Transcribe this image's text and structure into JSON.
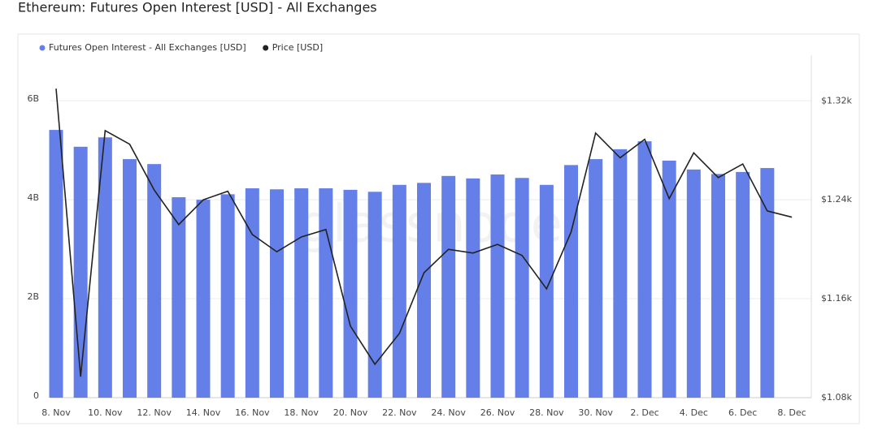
{
  "chart_data": {
    "type": "combo",
    "title": "Ethereum: Futures Open Interest [USD] - All Exchanges",
    "watermark": "glassnode",
    "categories": [
      "8. Nov",
      null,
      "10. Nov",
      null,
      "12. Nov",
      null,
      "14. Nov",
      null,
      "16. Nov",
      null,
      "18. Nov",
      null,
      "20. Nov",
      null,
      "22. Nov",
      null,
      "24. Nov",
      null,
      "26. Nov",
      null,
      "28. Nov",
      null,
      "30. Nov",
      null,
      "2. Dec",
      null,
      "4. Dec",
      null,
      "6. Dec",
      null,
      "8. Dec"
    ],
    "series": [
      {
        "name": "Futures Open Interest - All Exchanges [USD]",
        "type": "bar",
        "color": "#6480e8",
        "values": [
          5410000000.0,
          5070000000.0,
          5260000000.0,
          4820000000.0,
          4720000000.0,
          4050000000.0,
          4000000000.0,
          4110000000.0,
          4230000000.0,
          4210000000.0,
          4230000000.0,
          4230000000.0,
          4200000000.0,
          4160000000.0,
          4300000000.0,
          4340000000.0,
          4480000000.0,
          4430000000.0,
          4510000000.0,
          4440000000.0,
          4300000000.0,
          4700000000.0,
          4820000000.0,
          5020000000.0,
          5180000000.0,
          4790000000.0,
          4610000000.0,
          4520000000.0,
          4560000000.0,
          4640000000.0,
          null
        ]
      },
      {
        "name": "Price [USD]",
        "type": "line",
        "color": "#222222",
        "axis": "y2",
        "values": [
          1330,
          1097,
          1296,
          1285,
          1248,
          1220,
          1240,
          1247,
          1212,
          1198,
          1210,
          1216,
          1138,
          1107,
          1132,
          1181,
          1200,
          1197,
          1204,
          1195,
          1168,
          1214,
          1294,
          1274,
          1289,
          1241,
          1278,
          1258,
          1269,
          1231,
          1226
        ]
      }
    ],
    "ylim": [
      0,
      6920000000.0
    ],
    "yticks": [
      0,
      {
        "value": 2000000000.0,
        "label": "2B"
      },
      {
        "value": 4000000000.0,
        "label": "4B"
      },
      {
        "value": 6000000000.0,
        "label": "6B"
      }
    ],
    "y2lim": [
      1080,
      1357
    ],
    "y2ticks": [
      {
        "value": 1080,
        "label": "$1.08k"
      },
      {
        "value": 1160,
        "label": "$1.16k"
      },
      {
        "value": 1240,
        "label": "$1.24k"
      },
      {
        "value": 1320,
        "label": "$1.32k"
      }
    ],
    "grid": true,
    "legend": "top-left"
  }
}
